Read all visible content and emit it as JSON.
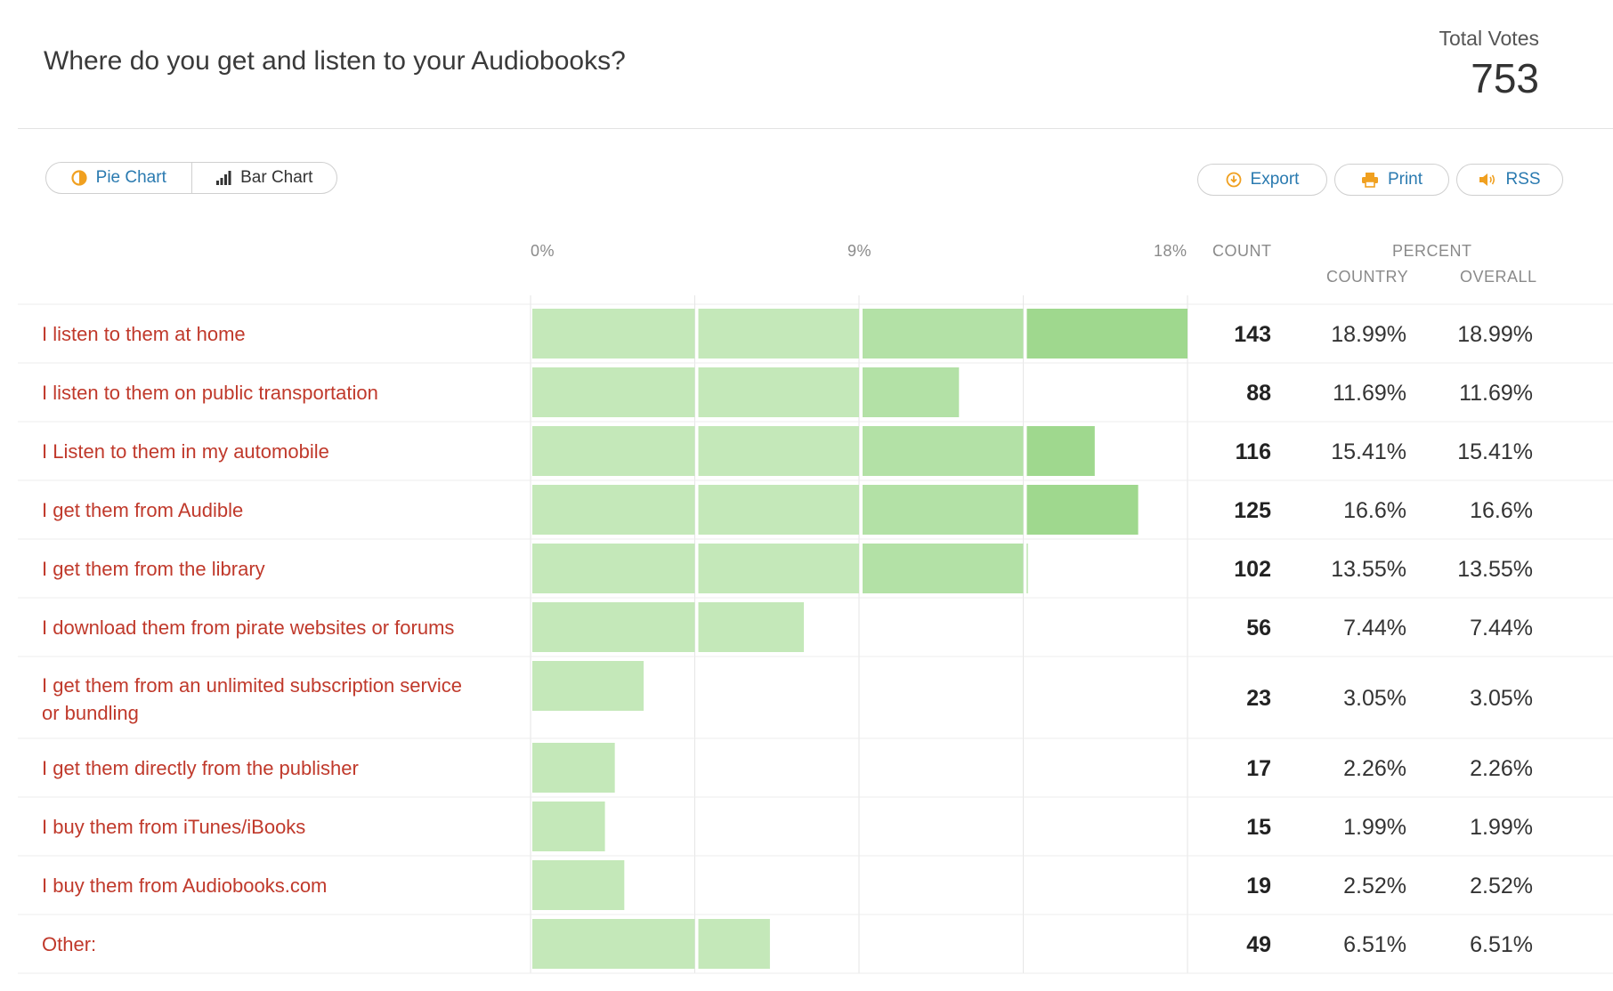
{
  "header": {
    "title": "Where do you get and listen to your Audiobooks?",
    "total_label": "Total Votes",
    "total_value": "753"
  },
  "toolbar": {
    "pie_chart_label": "Pie Chart",
    "bar_chart_label": "Bar Chart",
    "export_label": "Export",
    "print_label": "Print",
    "rss_label": "RSS"
  },
  "table_headers": {
    "count": "COUNT",
    "percent": "PERCENT",
    "country": "COUNTRY",
    "overall": "OVERALL"
  },
  "colors": {
    "bar_light": "#c4e8b9",
    "bar_mid": "#b3e1a6",
    "bar_dark": "#9fd88e",
    "label": "#c0392b",
    "accent": "#2a7ab0",
    "icon_orange": "#f0a020"
  },
  "icons": {
    "pie": "pie-chart-icon",
    "bar": "bar-chart-icon",
    "export": "download-icon",
    "print": "printer-icon",
    "rss": "speaker-icon"
  },
  "chart_data": {
    "type": "bar",
    "orientation": "horizontal",
    "x_ticks": [
      "0%",
      "9%",
      "18%"
    ],
    "xlim": [
      0,
      18
    ],
    "segment_width": 4.5,
    "grid": true,
    "rows": [
      {
        "label": "I listen to them at home",
        "count": "143",
        "country": "18.99%",
        "overall": "18.99%",
        "value": 18.99
      },
      {
        "label": "I listen to them on public transportation",
        "count": "88",
        "country": "11.69%",
        "overall": "11.69%",
        "value": 11.69
      },
      {
        "label": "I Listen to them in my automobile",
        "count": "116",
        "country": "15.41%",
        "overall": "15.41%",
        "value": 15.41
      },
      {
        "label": "I get them from Audible",
        "count": "125",
        "country": "16.6%",
        "overall": "16.6%",
        "value": 16.6
      },
      {
        "label": "I get them from the library",
        "count": "102",
        "country": "13.55%",
        "overall": "13.55%",
        "value": 13.55
      },
      {
        "label": "I download them from pirate websites or forums",
        "count": "56",
        "country": "7.44%",
        "overall": "7.44%",
        "value": 7.44
      },
      {
        "label": "I get them from an unlimited subscription service or bundling",
        "label_lines": [
          "I get them from an unlimited subscription service",
          "or bundling"
        ],
        "count": "23",
        "country": "3.05%",
        "overall": "3.05%",
        "value": 3.05
      },
      {
        "label": "I get them directly from the publisher",
        "count": "17",
        "country": "2.26%",
        "overall": "2.26%",
        "value": 2.26
      },
      {
        "label": "I buy them from iTunes/iBooks",
        "count": "15",
        "country": "1.99%",
        "overall": "1.99%",
        "value": 1.99
      },
      {
        "label": "I buy them from Audiobooks.com",
        "count": "19",
        "country": "2.52%",
        "overall": "2.52%",
        "value": 2.52
      },
      {
        "label": "Other:",
        "count": "49",
        "country": "6.51%",
        "overall": "6.51%",
        "value": 6.51
      }
    ]
  }
}
